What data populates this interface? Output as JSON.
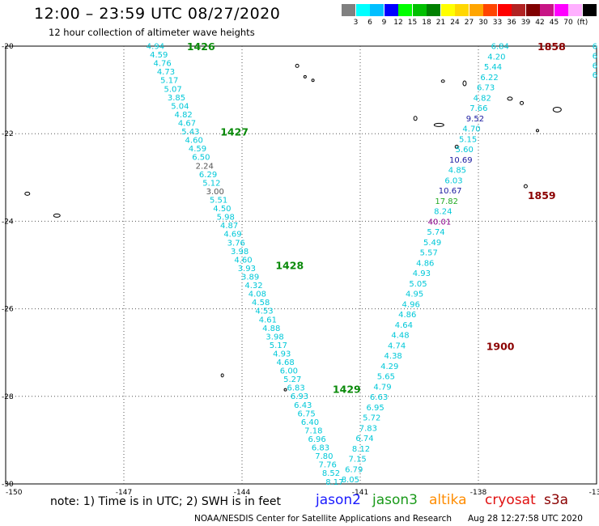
{
  "header": {
    "title": "12:00 – 23:59 UTC 08/27/2020",
    "subtitle": "12 hour collection of altimeter wave heights"
  },
  "legend": {
    "colors": [
      "#808080",
      "#00ffff",
      "#00bfff",
      "#0000ff",
      "#00ff00",
      "#00c000",
      "#008000",
      "#ffff00",
      "#ffd700",
      "#ffa500",
      "#ff4500",
      "#ff0000",
      "#b22222",
      "#800000",
      "#c71585",
      "#ff00ff",
      "#ffb0ff",
      "#000000"
    ],
    "labels": [
      "3",
      "6",
      "9",
      "12",
      "15",
      "18",
      "21",
      "24",
      "27",
      "30",
      "33",
      "36",
      "39",
      "42",
      "45",
      "70",
      "(ft)"
    ]
  },
  "map": {
    "lon_range": [
      -150,
      -135
    ],
    "lat_range": [
      -30,
      -20
    ],
    "lon_ticks": [
      "-150",
      "-147",
      "-144",
      "-141",
      "-138",
      "-13"
    ],
    "lat_ticks": [
      "-20",
      "-22",
      "-24",
      "-26",
      "-28",
      "-30"
    ],
    "track_color": "#00c8d8",
    "label_color_default": "#00c8d8",
    "west_track": {
      "time_labels": [
        {
          "text": "1426",
          "color": "#0a8a0a",
          "lon": -145.4,
          "lat": -20.0
        },
        {
          "text": "1427",
          "color": "#0a8a0a",
          "lon": -144.55,
          "lat": -21.95
        },
        {
          "text": "1428",
          "color": "#0a8a0a",
          "lon": -143.15,
          "lat": -25.0
        },
        {
          "text": "1429",
          "color": "#0a8a0a",
          "lon": -141.7,
          "lat": -27.83
        }
      ],
      "values": [
        "4.94",
        "4.59",
        "4.76",
        "4.73",
        "5.17",
        "5.07",
        "3.85",
        "5.04",
        "4.82",
        "4.67",
        "5.43",
        "4.60",
        "4.59",
        "6.50",
        "2.24",
        "6.29",
        "5.12",
        "3.00",
        "5.51",
        "4.50",
        "5.98",
        "4.87",
        "4.69",
        "3.76",
        "3.98",
        "4.60",
        "3.93",
        "3.89",
        "4.32",
        "4.08",
        "4.58",
        "4.53",
        "4.61",
        "4.88",
        "3.98",
        "5.17",
        "4.93",
        "4.68",
        "6.00",
        "5.27",
        "6.83",
        "6.93",
        "6.43",
        "6.75",
        "6.40",
        "7.18",
        "6.96",
        "6.83",
        "7.80",
        "7.76",
        "8.52",
        "8.17"
      ],
      "value_colors": {
        "2.24": "#555555",
        "3.00": "#555555"
      }
    },
    "east_track": {
      "time_labels": [
        {
          "text": "1858",
          "color": "#8b0000",
          "lon": -136.5,
          "lat": -20.0
        },
        {
          "text": "1859",
          "color": "#8b0000",
          "lon": -136.75,
          "lat": -23.4
        },
        {
          "text": "1900",
          "color": "#8b0000",
          "lon": -137.8,
          "lat": -26.85
        }
      ],
      "values": [
        "6.84",
        "4.20",
        "5.44",
        "6.22",
        "6.73",
        "4.82",
        "7.66",
        "9.52",
        "4.70",
        "5.15",
        "5.60",
        "10.69",
        "4.85",
        "6.03",
        "10.67",
        "17.82",
        "8.24",
        "40.01",
        "5.74",
        "5.49",
        "5.57",
        "4.86",
        "4.93",
        "5.05",
        "4.95",
        "4.96",
        "4.86",
        "4.64",
        "4.48",
        "4.74",
        "4.38",
        "4.29",
        "5.65",
        "4.79",
        "6.63",
        "6.95",
        "5.72",
        "7.83",
        "6.74",
        "8.12",
        "7.15",
        "6.79",
        "8.05"
      ],
      "value_colors": {
        "9.52": "#1a1aa0",
        "10.69": "#1a1aa0",
        "10.67": "#1a1aa0",
        "17.82": "#22aa22",
        "40.01": "#8a008a"
      }
    },
    "edge_track_values": [
      "6",
      "6",
      "6",
      "6"
    ]
  },
  "footer": {
    "note": "note: 1) Time is in UTC; 2) SWH is in feet",
    "satellites": [
      {
        "name": "jason2",
        "color": "#1a1aff"
      },
      {
        "name": "jason3",
        "color": "#1a9a1a"
      },
      {
        "name": "altika",
        "color": "#ff8c00"
      },
      {
        "name": "cryosat",
        "color": "#e01010"
      },
      {
        "name": "s3a",
        "color": "#8b0000"
      }
    ],
    "credit": "NOAA/NESDIS Center for Satellite Applications and Research",
    "timestamp": "Aug 28 12:27:58 UTC 2020"
  }
}
